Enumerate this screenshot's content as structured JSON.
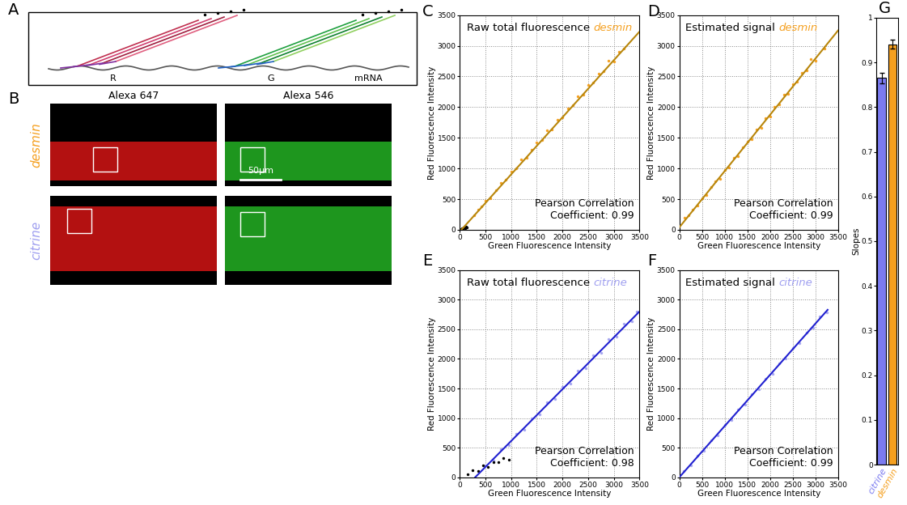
{
  "panel_labels": [
    "A",
    "B",
    "C",
    "D",
    "E",
    "F",
    "G"
  ],
  "panel_a": {
    "labels": [
      "R",
      "G",
      "mRNA"
    ]
  },
  "panel_b": {
    "columns": [
      "Alexa 647",
      "Alexa 546"
    ],
    "rows": [
      {
        "name": "desmin",
        "color": "#f5a020"
      },
      {
        "name": "citrine",
        "color": "#9f9ff0"
      }
    ],
    "scale_bar": "50µm"
  },
  "chart_data": [
    {
      "type": "scatter",
      "title": "Raw total fluorescence",
      "subject": "desmin",
      "color": "#f5a020",
      "annotation": "Pearson Correlation\nCoefficient: 0.99",
      "x_label": "Green Fluorescence Intensity",
      "y_label": "Red Fluorescence Intensity",
      "xlim": [
        0,
        3500
      ],
      "ylim": [
        0,
        3500
      ],
      "xticks": [
        0,
        500,
        1000,
        1500,
        2000,
        2500,
        3000,
        3500
      ],
      "yticks": [
        0,
        500,
        1000,
        1500,
        2000,
        2500,
        3000,
        3500
      ],
      "grid": true,
      "series": [
        {
          "type": "scatter",
          "color": "#f5a020",
          "marker": "o",
          "x": [
            280,
            350,
            420,
            500,
            600,
            700,
            800,
            900,
            1000,
            1100,
            1200,
            1300,
            1400,
            1500,
            1600,
            1700,
            1800,
            1900,
            2000,
            2100,
            2200,
            2300,
            2400,
            2500,
            2600,
            2700,
            2800,
            2900,
            3000,
            3100,
            3200
          ],
          "values": [
            240,
            330,
            380,
            480,
            520,
            650,
            760,
            820,
            950,
            1000,
            1150,
            1180,
            1310,
            1420,
            1460,
            1620,
            1640,
            1800,
            1830,
            1980,
            2030,
            2180,
            2200,
            2360,
            2400,
            2550,
            2580,
            2760,
            2750,
            2900,
            2950
          ]
        },
        {
          "type": "scatter",
          "color": "#000000",
          "marker": "o",
          "x": [
            20,
            40,
            60,
            80,
            100,
            120,
            140
          ],
          "values": [
            10,
            20,
            15,
            40,
            30,
            50,
            45
          ]
        },
        {
          "type": "line",
          "color": "#b8860b",
          "line_style": "solid",
          "x": [
            30,
            3500
          ],
          "values": [
            0,
            3230
          ]
        }
      ]
    },
    {
      "type": "scatter",
      "title": "Estimated signal",
      "subject": "desmin",
      "color": "#f5a020",
      "annotation": "Pearson Correlation\nCoefficient: 0.99",
      "x_label": "Green Fluorescence Intensity",
      "y_label": "Red Fluorescence Intensity",
      "xlim": [
        0,
        3500
      ],
      "ylim": [
        0,
        3500
      ],
      "xticks": [
        0,
        500,
        1000,
        1500,
        2000,
        2500,
        3000,
        3500
      ],
      "yticks": [
        0,
        500,
        1000,
        1500,
        2000,
        2500,
        3000,
        3500
      ],
      "grid": true,
      "series": [
        {
          "type": "scatter",
          "color": "#f5a020",
          "marker": "o",
          "x": [
            120,
            200,
            300,
            400,
            500,
            600,
            700,
            800,
            900,
            1000,
            1100,
            1200,
            1300,
            1400,
            1500,
            1600,
            1700,
            1800,
            1900,
            2000,
            2100,
            2200,
            2300,
            2400,
            2500,
            2600,
            2700,
            2800,
            2900,
            3000,
            3200
          ],
          "values": [
            200,
            230,
            330,
            400,
            520,
            560,
            700,
            790,
            830,
            980,
            1020,
            1170,
            1200,
            1340,
            1440,
            1480,
            1640,
            1660,
            1820,
            1850,
            2000,
            2050,
            2200,
            2220,
            2380,
            2420,
            2560,
            2600,
            2780,
            2760,
            2950
          ]
        },
        {
          "type": "line",
          "color": "#b8860b",
          "line_style": "solid",
          "x": [
            0,
            3500
          ],
          "values": [
            40,
            3250
          ]
        }
      ]
    },
    {
      "type": "scatter",
      "title": "Raw total fluorescence",
      "subject": "citrine",
      "color": "#9f9ff0",
      "annotation": "Pearson Correlation\nCoefficient: 0.98",
      "x_label": "Green Fluorescence Intensity",
      "y_label": "Red Fluorescence Intensity",
      "xlim": [
        0,
        3500
      ],
      "ylim": [
        0,
        3500
      ],
      "xticks": [
        0,
        500,
        1000,
        1500,
        2000,
        2500,
        3000,
        3500
      ],
      "yticks": [
        0,
        500,
        1000,
        1500,
        2000,
        2500,
        3000,
        3500
      ],
      "grid": true,
      "series": [
        {
          "type": "scatter",
          "color": "#a7a7f0",
          "marker": "o",
          "x": [
            500,
            650,
            800,
            950,
            1100,
            1250,
            1400,
            1550,
            1700,
            1850,
            2000,
            2150,
            2300,
            2450,
            2600,
            2750,
            2900,
            3050,
            3200,
            3350,
            3450
          ],
          "values": [
            200,
            280,
            480,
            540,
            730,
            800,
            1000,
            1060,
            1270,
            1320,
            1530,
            1580,
            1800,
            1840,
            2060,
            2100,
            2330,
            2380,
            2600,
            2640,
            2800
          ]
        },
        {
          "type": "scatter",
          "color": "#000000",
          "marker": "o",
          "x": [
            150,
            250,
            350,
            450,
            550,
            650,
            750,
            850,
            950
          ],
          "values": [
            50,
            120,
            100,
            200,
            180,
            260,
            250,
            330,
            300
          ]
        },
        {
          "type": "line",
          "color": "#2020d0",
          "line_style": "solid",
          "x": [
            300,
            3500
          ],
          "values": [
            0,
            2800
          ]
        }
      ]
    },
    {
      "type": "scatter",
      "title": "Estimated signal",
      "subject": "citrine",
      "color": "#9f9ff0",
      "annotation": "Pearson Correlation\nCoefficient: 0.99",
      "x_label": "Green Fluorescence Intensity",
      "y_label": "Red Fluorescence Intensity",
      "xlim": [
        0,
        3500
      ],
      "ylim": [
        0,
        3500
      ],
      "xticks": [
        0,
        500,
        1000,
        1500,
        2000,
        2500,
        3000,
        3500
      ],
      "yticks": [
        0,
        500,
        1000,
        1500,
        2000,
        2500,
        3000,
        3500
      ],
      "grid": true,
      "series": [
        {
          "type": "scatter",
          "color": "#a7a7f0",
          "marker": "o",
          "x": [
            100,
            250,
            400,
            550,
            700,
            850,
            1000,
            1150,
            1300,
            1450,
            1600,
            1750,
            1900,
            2050,
            2200,
            2350,
            2500,
            2650,
            2800,
            2950,
            3100,
            3250
          ],
          "values": [
            110,
            200,
            370,
            450,
            630,
            710,
            890,
            970,
            1150,
            1230,
            1410,
            1490,
            1670,
            1750,
            1930,
            2000,
            2190,
            2260,
            2450,
            2520,
            2720,
            2780
          ]
        },
        {
          "type": "line",
          "color": "#2020d0",
          "line_style": "solid",
          "x": [
            0,
            3270
          ],
          "values": [
            0,
            2830
          ]
        }
      ]
    },
    {
      "type": "bar",
      "y_label": "Slopes",
      "categories": [
        "citrine",
        "desmin"
      ],
      "values": [
        0.865,
        0.94
      ],
      "errors": [
        0.012,
        0.01
      ],
      "colors": [
        "#7b7bf0",
        "#f5a020"
      ],
      "ylim": [
        0,
        1
      ],
      "yticks": [
        0,
        0.1,
        0.2,
        0.3,
        0.4,
        0.5,
        0.6,
        0.7,
        0.8,
        0.9,
        1
      ],
      "grid": false
    }
  ]
}
